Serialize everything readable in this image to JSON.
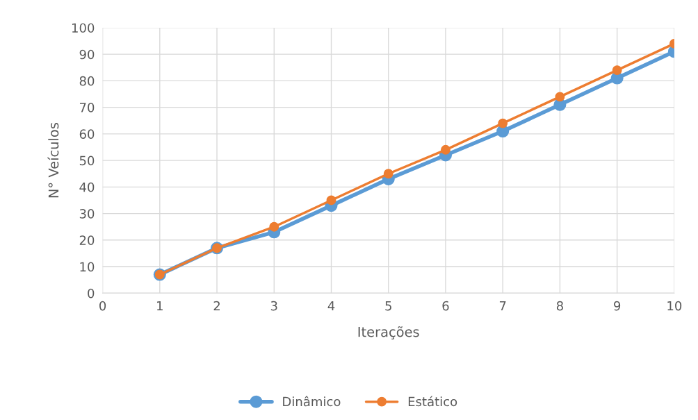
{
  "chart_data": {
    "type": "line",
    "xlabel": "Iterações",
    "ylabel": "N° Veículos",
    "x": [
      1,
      2,
      3,
      4,
      5,
      6,
      7,
      8,
      9,
      10
    ],
    "series": [
      {
        "name": "Dinâmico",
        "color": "#5b9bd5",
        "values": [
          7,
          17,
          23,
          33,
          43,
          52,
          61,
          71,
          81,
          91
        ]
      },
      {
        "name": "Estático",
        "color": "#ed7d31",
        "values": [
          7,
          17,
          25,
          35,
          45,
          54,
          64,
          74,
          84,
          94
        ]
      }
    ],
    "xlim": [
      0,
      10
    ],
    "xticks": [
      0,
      1,
      2,
      3,
      4,
      5,
      6,
      7,
      8,
      9,
      10
    ],
    "ylim": [
      0,
      100
    ],
    "yticks": [
      0,
      10,
      20,
      30,
      40,
      50,
      60,
      70,
      80,
      90,
      100
    ],
    "grid": true,
    "legend": "bottom",
    "marker": "circle",
    "line_style": "solid"
  }
}
